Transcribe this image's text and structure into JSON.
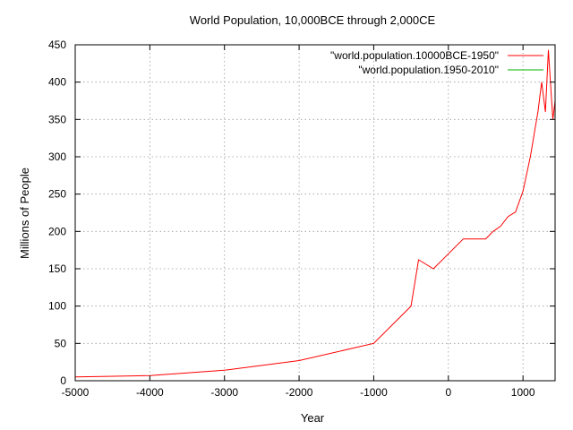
{
  "chart_data": {
    "type": "line",
    "title": "World Population, 10,000BCE through 2,000CE",
    "xlabel": "Year",
    "ylabel": "Millions of People",
    "xlim": [
      -5000,
      1430
    ],
    "ylim": [
      0,
      450
    ],
    "xticks": [
      -5000,
      -4000,
      -3000,
      -2000,
      -1000,
      0,
      1000
    ],
    "yticks": [
      0,
      50,
      100,
      150,
      200,
      250,
      300,
      350,
      400,
      450
    ],
    "grid": true,
    "legend_position": "top-right",
    "series": [
      {
        "name": "\"world.population.10000BCE-1950\"",
        "color": "#ff0000",
        "x": [
          -5000,
          -4000,
          -3000,
          -2000,
          -1000,
          -500,
          -400,
          -200,
          1,
          200,
          400,
          500,
          600,
          700,
          800,
          900,
          1000,
          1100,
          1200,
          1250,
          1300,
          1340,
          1400,
          1430
        ],
        "y": [
          5,
          7,
          14,
          27,
          50,
          100,
          162,
          150,
          170,
          190,
          190,
          190,
          200,
          207,
          220,
          226,
          254,
          301,
          360,
          400,
          360,
          443,
          350,
          375
        ]
      },
      {
        "name": "\"world.population.1950-2010\"",
        "color": "#00b000",
        "x": [],
        "y": []
      }
    ]
  }
}
